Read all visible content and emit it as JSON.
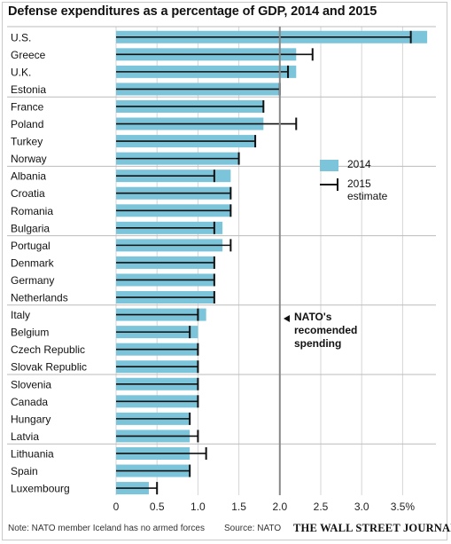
{
  "chart_data": {
    "type": "bar",
    "orientation": "horizontal",
    "title": "Defense expenditures as a percentage of GDP, 2014 and 2015",
    "categories": [
      "U.S.",
      "Greece",
      "U.K.",
      "Estonia",
      "France",
      "Poland",
      "Turkey",
      "Norway",
      "Albania",
      "Croatia",
      "Romania",
      "Bulgaria",
      "Portugal",
      "Denmark",
      "Germany",
      "Netherlands",
      "Italy",
      "Belgium",
      "Czech Republic",
      "Slovak Republic",
      "Slovenia",
      "Canada",
      "Hungary",
      "Latvia",
      "Lithuania",
      "Spain",
      "Luxembourg"
    ],
    "series": [
      {
        "name": "2014",
        "values": [
          3.8,
          2.2,
          2.2,
          2.0,
          1.8,
          1.8,
          1.7,
          1.5,
          1.4,
          1.4,
          1.4,
          1.3,
          1.3,
          1.2,
          1.2,
          1.2,
          1.1,
          1.0,
          1.0,
          1.0,
          1.0,
          1.0,
          0.9,
          0.9,
          0.9,
          0.9,
          0.4
        ]
      },
      {
        "name": "2015 estimate",
        "values": [
          3.6,
          2.4,
          2.1,
          2.0,
          1.8,
          2.2,
          1.7,
          1.5,
          1.2,
          1.4,
          1.4,
          1.2,
          1.4,
          1.2,
          1.2,
          1.2,
          1.0,
          0.9,
          1.0,
          1.0,
          1.0,
          1.0,
          0.9,
          1.0,
          1.1,
          0.9,
          0.5
        ]
      }
    ],
    "xlim": [
      0,
      3.8
    ],
    "xticks": [
      "0",
      "0.5",
      "1.0",
      "1.5",
      "2.0",
      "2.5",
      "3.0",
      "3.5%"
    ],
    "xtick_values": [
      0,
      0.5,
      1.0,
      1.5,
      2.0,
      2.5,
      3.0,
      3.5
    ],
    "reference_value": 2.0,
    "reference_label": "NATO's recomended spending",
    "group_size": 4,
    "grid": true,
    "legend_position": "right",
    "colors": {
      "bar": "#7bc4d9",
      "error": "#111111",
      "reference": "#888888",
      "separator": "#bbbbbb",
      "grid": "#d5d5d5"
    }
  },
  "legend": {
    "item_2014": "2014",
    "item_2015": "2015 estimate"
  },
  "annotation": {
    "nato_label": "NATO's recomended spending"
  },
  "footer": {
    "note": "Note: NATO member Iceland has no armed forces",
    "source": "Source: NATO",
    "publisher": "THE WALL STREET JOURNAL."
  }
}
